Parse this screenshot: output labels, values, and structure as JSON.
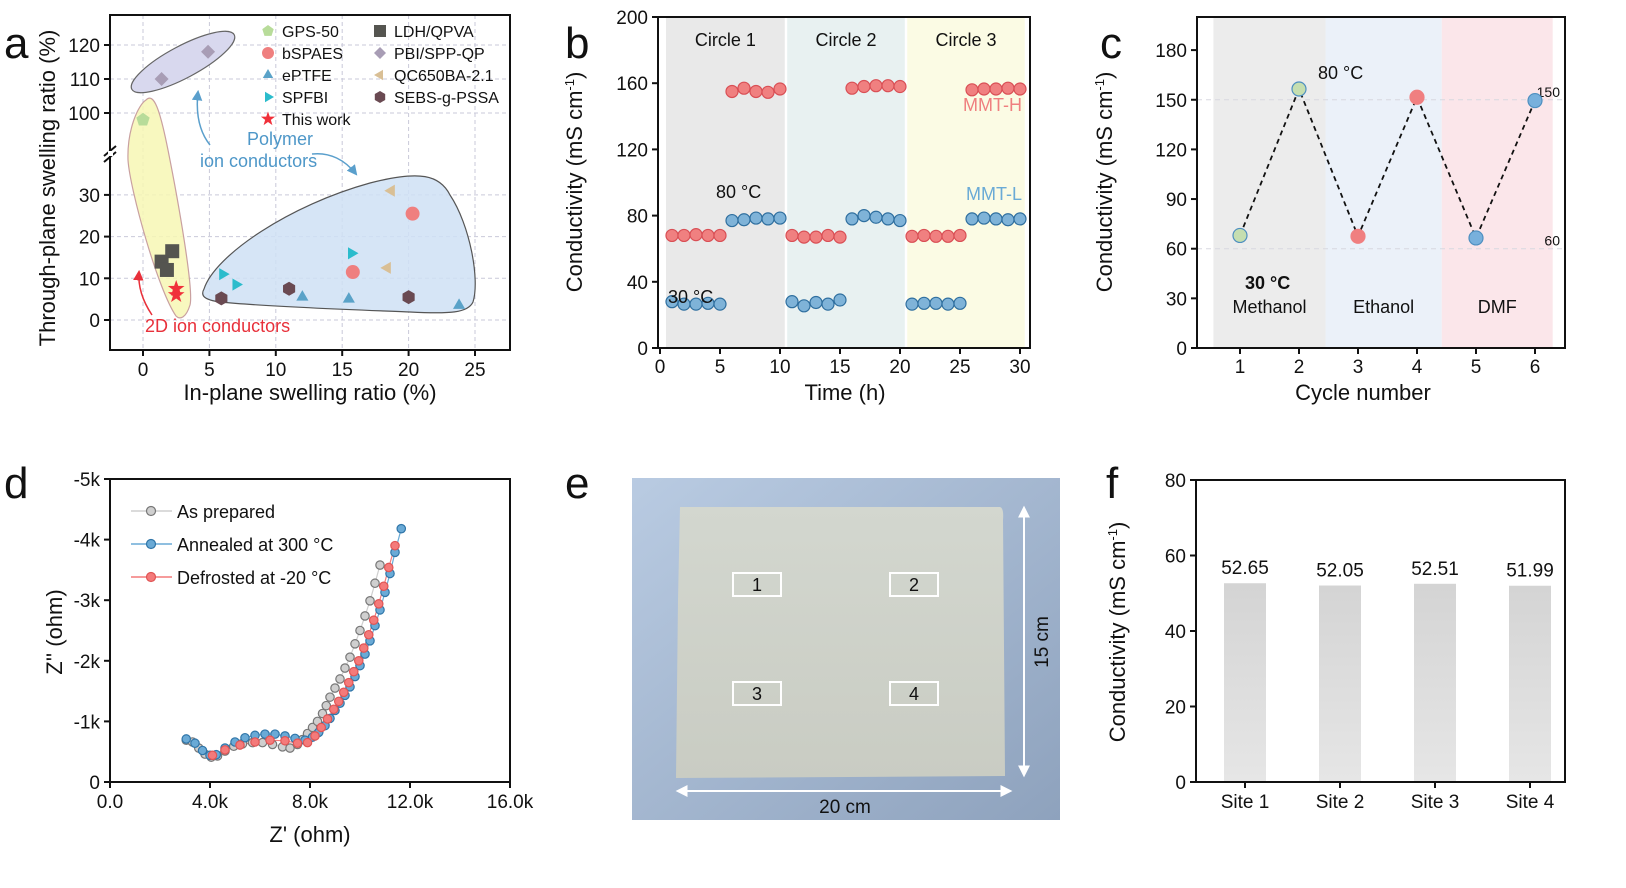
{
  "figure": {
    "panel_labels": [
      "a",
      "b",
      "c",
      "d",
      "e",
      "f"
    ]
  },
  "chart_data": [
    {
      "panel": "a",
      "type": "scatter",
      "xlabel": "In-plane swelling ratio (%)",
      "ylabel": "Through-plane swelling ratio (%)",
      "xlim": [
        -2.5,
        27.5
      ],
      "xticks": [
        "0",
        "5",
        "10",
        "15",
        "20",
        "25"
      ],
      "xtick_values": [
        0,
        5,
        10,
        15,
        20,
        25
      ],
      "ylim_lower": [
        -8,
        38
      ],
      "ylim_upper": [
        90,
        125
      ],
      "yticks": [
        "0",
        "10",
        "20",
        "30",
        "100",
        "110",
        "120"
      ],
      "ytick_values": [
        0,
        10,
        20,
        30,
        100,
        110,
        120
      ],
      "axis_break": true,
      "grid": true,
      "legend_position": "top-right",
      "series": [
        {
          "name": "GPS-50",
          "marker": "pentagon",
          "color": "#b8dc9a",
          "points": [
            [
              0,
              98
            ]
          ]
        },
        {
          "name": "bSPAES",
          "marker": "circle",
          "color": "#ef7f7f",
          "points": [
            [
              15.8,
              11.5
            ],
            [
              20.3,
              25.5
            ]
          ]
        },
        {
          "name": "ePTFE",
          "marker": "triangle-up",
          "color": "#5aa2c8",
          "points": [
            [
              12,
              5.5
            ],
            [
              15.5,
              5
            ],
            [
              23.8,
              3.5
            ]
          ]
        },
        {
          "name": "SPFBI",
          "marker": "triangle-right",
          "color": "#2bbccc",
          "points": [
            [
              6,
              11
            ],
            [
              7,
              8.5
            ],
            [
              15.7,
              16
            ]
          ]
        },
        {
          "name": "This work",
          "marker": "star",
          "color": "#f0303a",
          "points": [
            [
              2.5,
              7.5
            ],
            [
              2.5,
              6
            ]
          ]
        },
        {
          "name": "LDH/QPVA",
          "marker": "square",
          "color": "#555550",
          "points": [
            [
              2.2,
              16.5
            ],
            [
              1.4,
              14
            ],
            [
              1.8,
              12
            ]
          ]
        },
        {
          "name": "PBI/SPP-QP",
          "marker": "diamond",
          "color": "#a89db5",
          "points": [
            [
              1.4,
              110
            ],
            [
              4.9,
              118
            ]
          ]
        },
        {
          "name": "QC650BA-2.1",
          "marker": "triangle-left",
          "color": "#d9bf95",
          "points": [
            [
              18.7,
              31
            ],
            [
              18.4,
              12.5
            ]
          ]
        },
        {
          "name": "SEBS-g-PSSA",
          "marker": "hexagon",
          "color": "#6a4a52",
          "points": [
            [
              5.9,
              5.2
            ],
            [
              11,
              7.5
            ],
            [
              20,
              5.5
            ]
          ]
        }
      ],
      "annotations": {
        "polymer_line1": "Polymer",
        "polymer_line2": "ion conductors",
        "twod": "2D ion conductors"
      }
    },
    {
      "panel": "b",
      "type": "scatter",
      "xlabel": "Time (h)",
      "ylabel": "Conductivity (mS cm",
      "ylabel_sup": "-1",
      "ylabel_end": ")",
      "xlim": [
        0,
        30
      ],
      "ylim": [
        0,
        200
      ],
      "xticks": [
        "0",
        "5",
        "10",
        "15",
        "20",
        "25",
        "30"
      ],
      "xtick_values": [
        0,
        5,
        10,
        15,
        20,
        25,
        30
      ],
      "yticks": [
        "0",
        "40",
        "80",
        "120",
        "160",
        "200"
      ],
      "ytick_values": [
        0,
        40,
        80,
        120,
        160,
        200
      ],
      "regions": [
        {
          "label": "Circle 1",
          "from": 0.5,
          "to": 10.4,
          "color": "#e9e9e9"
        },
        {
          "label": "Circle 2",
          "from": 10.6,
          "to": 20.4,
          "color": "#e8f1f1"
        },
        {
          "label": "Circle 3",
          "from": 20.6,
          "to": 30.4,
          "color": "#fbfbe4"
        }
      ],
      "series": [
        {
          "name": "MMT-H",
          "color": "#f08080",
          "stroke": "#d94f55",
          "x": [
            1,
            2,
            3,
            4,
            5,
            6,
            7,
            8,
            9,
            10,
            11,
            12,
            13,
            14,
            15,
            16,
            17,
            18,
            19,
            20,
            21,
            22,
            23,
            24,
            25,
            26,
            27,
            28,
            29,
            30
          ],
          "y": [
            68,
            68,
            68.5,
            68,
            68,
            155,
            157,
            155,
            154.5,
            156.5,
            68,
            67,
            67,
            68,
            67,
            157,
            158,
            158.5,
            158.5,
            158,
            67.5,
            68,
            67.5,
            67.5,
            68,
            156,
            156.5,
            156.5,
            157,
            156.5
          ]
        },
        {
          "name": "MMT-L",
          "color": "#7fb3d8",
          "stroke": "#2f6f9f",
          "x": [
            1,
            2,
            3,
            4,
            5,
            6,
            7,
            8,
            9,
            10,
            11,
            12,
            13,
            14,
            15,
            16,
            17,
            18,
            19,
            20,
            21,
            22,
            23,
            24,
            25,
            26,
            27,
            28,
            29,
            30
          ],
          "y": [
            28,
            26.5,
            26.5,
            27,
            26.5,
            77,
            77.5,
            78.5,
            78,
            78.5,
            28,
            25.5,
            27.5,
            26.5,
            29,
            78,
            80,
            79,
            78,
            77,
            26.5,
            27,
            27,
            26.5,
            27,
            78,
            78.5,
            78,
            77.5,
            78
          ]
        }
      ],
      "annotations": {
        "t30": "30 °C",
        "t80": "80 °C",
        "mmt_h": "MMT-H",
        "mmt_l": "MMT-L"
      }
    },
    {
      "panel": "c",
      "type": "line",
      "xlabel": "Cycle number",
      "ylabel": "Conductivity (mS cm",
      "ylabel_sup": "-1",
      "ylabel_end": ")",
      "xlim": [
        0.4,
        6.8
      ],
      "ylim": [
        0,
        200
      ],
      "xticks": [
        "1",
        "2",
        "3",
        "4",
        "5",
        "6"
      ],
      "xtick_values": [
        1,
        2,
        3,
        4,
        5,
        6
      ],
      "yticks": [
        "0",
        "30",
        "60",
        "90",
        "120",
        "150",
        "180"
      ],
      "ytick_values": [
        0,
        30,
        60,
        90,
        120,
        150,
        180
      ],
      "regions": [
        {
          "label": "Methanol",
          "from": 0.55,
          "to": 2.45,
          "color": "#ececec"
        },
        {
          "label": "Ethanol",
          "from": 2.45,
          "to": 4.42,
          "color": "#ebf1f9"
        },
        {
          "label": "DMF",
          "from": 4.42,
          "to": 6.3,
          "color": "#fbe6ea"
        }
      ],
      "reference_lines": [
        {
          "value": 150,
          "label": "150"
        },
        {
          "value": 60,
          "label": "60"
        }
      ],
      "points": [
        {
          "x": 1,
          "y": 68,
          "color": "#c5deb0",
          "stroke": "#4e8fc0"
        },
        {
          "x": 2,
          "y": 156.5,
          "color": "#c5deb0",
          "stroke": "#4e8fc0"
        },
        {
          "x": 3,
          "y": 67.5,
          "color": "#f07f80",
          "stroke": "#f07f80"
        },
        {
          "x": 4,
          "y": 151.5,
          "color": "#f07f80",
          "stroke": "#f07f80"
        },
        {
          "x": 5,
          "y": 66.5,
          "color": "#78b0dc",
          "stroke": "#4e8fc0"
        },
        {
          "x": 6,
          "y": 149.5,
          "color": "#78b0dc",
          "stroke": "#4e8fc0"
        }
      ],
      "annotations": {
        "t30": "30 °C",
        "t80": "80 °C"
      }
    },
    {
      "panel": "d",
      "type": "scatter",
      "xlabel": "Z' (ohm)",
      "ylabel": "Z'' (ohm)",
      "xlim": [
        0,
        16000
      ],
      "ylim": [
        0,
        -5000
      ],
      "xticks": [
        "0.0",
        "4.0k",
        "8.0k",
        "12.0k",
        "16.0k"
      ],
      "xtick_values": [
        0,
        4000,
        8000,
        12000,
        16000
      ],
      "yticks": [
        "0",
        "-1k",
        "-2k",
        "-3k",
        "-4k",
        "-5k"
      ],
      "ytick_values": [
        0,
        -1000,
        -2000,
        -3000,
        -4000,
        -5000
      ],
      "legend_position": "top-left",
      "series": [
        {
          "name": "As prepared",
          "color": "#cfcfcf",
          "stroke": "#777777",
          "points": [
            [
              3050,
              -690
            ],
            [
              3300,
              -660
            ],
            [
              3550,
              -560
            ],
            [
              3800,
              -460
            ],
            [
              4050,
              -410
            ],
            [
              4300,
              -430
            ],
            [
              4600,
              -510
            ],
            [
              4950,
              -590
            ],
            [
              5300,
              -630
            ],
            [
              5700,
              -650
            ],
            [
              6100,
              -650
            ],
            [
              6500,
              -620
            ],
            [
              6900,
              -580
            ],
            [
              7200,
              -560
            ],
            [
              7500,
              -620
            ],
            [
              7700,
              -700
            ],
            [
              7900,
              -800
            ],
            [
              8100,
              -900
            ],
            [
              8300,
              -1000
            ],
            [
              8500,
              -1130
            ],
            [
              8650,
              -1260
            ],
            [
              8800,
              -1400
            ],
            [
              9000,
              -1550
            ],
            [
              9200,
              -1700
            ],
            [
              9400,
              -1880
            ],
            [
              9600,
              -2060
            ],
            [
              9800,
              -2280
            ],
            [
              10000,
              -2500
            ],
            [
              10200,
              -2740
            ],
            [
              10400,
              -2990
            ],
            [
              10600,
              -3280
            ],
            [
              10800,
              -3580
            ]
          ]
        },
        {
          "name": "Annealed at 300 °C",
          "color": "#6aaad6",
          "stroke": "#2f75a8",
          "points": [
            [
              3050,
              -710
            ],
            [
              3400,
              -640
            ],
            [
              3700,
              -520
            ],
            [
              4000,
              -440
            ],
            [
              4250,
              -450
            ],
            [
              4600,
              -560
            ],
            [
              5000,
              -660
            ],
            [
              5400,
              -730
            ],
            [
              5800,
              -770
            ],
            [
              6200,
              -790
            ],
            [
              6600,
              -790
            ],
            [
              7000,
              -760
            ],
            [
              7400,
              -720
            ],
            [
              7800,
              -690
            ],
            [
              8100,
              -740
            ],
            [
              8350,
              -820
            ],
            [
              8600,
              -930
            ],
            [
              8800,
              -1050
            ],
            [
              9000,
              -1180
            ],
            [
              9200,
              -1300
            ],
            [
              9400,
              -1430
            ],
            [
              9600,
              -1570
            ],
            [
              9800,
              -1740
            ],
            [
              10000,
              -1920
            ],
            [
              10200,
              -2110
            ],
            [
              10400,
              -2330
            ],
            [
              10600,
              -2580
            ],
            [
              10800,
              -2840
            ],
            [
              11000,
              -3130
            ],
            [
              11200,
              -3440
            ],
            [
              11400,
              -3790
            ],
            [
              11650,
              -4180
            ]
          ]
        },
        {
          "name": "Defrosted at -20 °C",
          "color": "#f47a7a",
          "stroke": "#e05555",
          "points": [
            [
              4100,
              -440
            ],
            [
              4600,
              -530
            ],
            [
              5200,
              -610
            ],
            [
              5800,
              -660
            ],
            [
              6400,
              -690
            ],
            [
              7000,
              -680
            ],
            [
              7500,
              -640
            ],
            [
              7900,
              -650
            ],
            [
              8200,
              -760
            ],
            [
              8450,
              -900
            ],
            [
              8700,
              -1040
            ],
            [
              8950,
              -1200
            ],
            [
              9150,
              -1330
            ],
            [
              9350,
              -1480
            ],
            [
              9550,
              -1640
            ],
            [
              9750,
              -1820
            ],
            [
              9950,
              -2000
            ],
            [
              10150,
              -2210
            ],
            [
              10350,
              -2430
            ],
            [
              10550,
              -2670
            ],
            [
              10750,
              -2940
            ],
            [
              10950,
              -3230
            ],
            [
              11150,
              -3540
            ],
            [
              11400,
              -3900
            ]
          ]
        }
      ]
    },
    {
      "panel": "f",
      "type": "bar",
      "xlabel": "",
      "ylabel": "Conductivity (mS cm",
      "ylabel_sup": "-1",
      "ylabel_end": ")",
      "categories": [
        "Site 1",
        "Site 2",
        "Site 3",
        "Site 4"
      ],
      "values": [
        52.65,
        52.05,
        52.51,
        51.99
      ],
      "value_labels": [
        "52.65",
        "52.05",
        "52.51",
        "51.99"
      ],
      "ylim": [
        0,
        80
      ],
      "yticks": [
        "0",
        "20",
        "40",
        "60",
        "80"
      ],
      "ytick_values": [
        0,
        20,
        40,
        60,
        80
      ],
      "bar_color": "#dcdcdc"
    }
  ],
  "photo_e": {
    "site_labels": [
      "1",
      "2",
      "3",
      "4"
    ],
    "width_label": "20 cm",
    "height_label": "15 cm"
  }
}
